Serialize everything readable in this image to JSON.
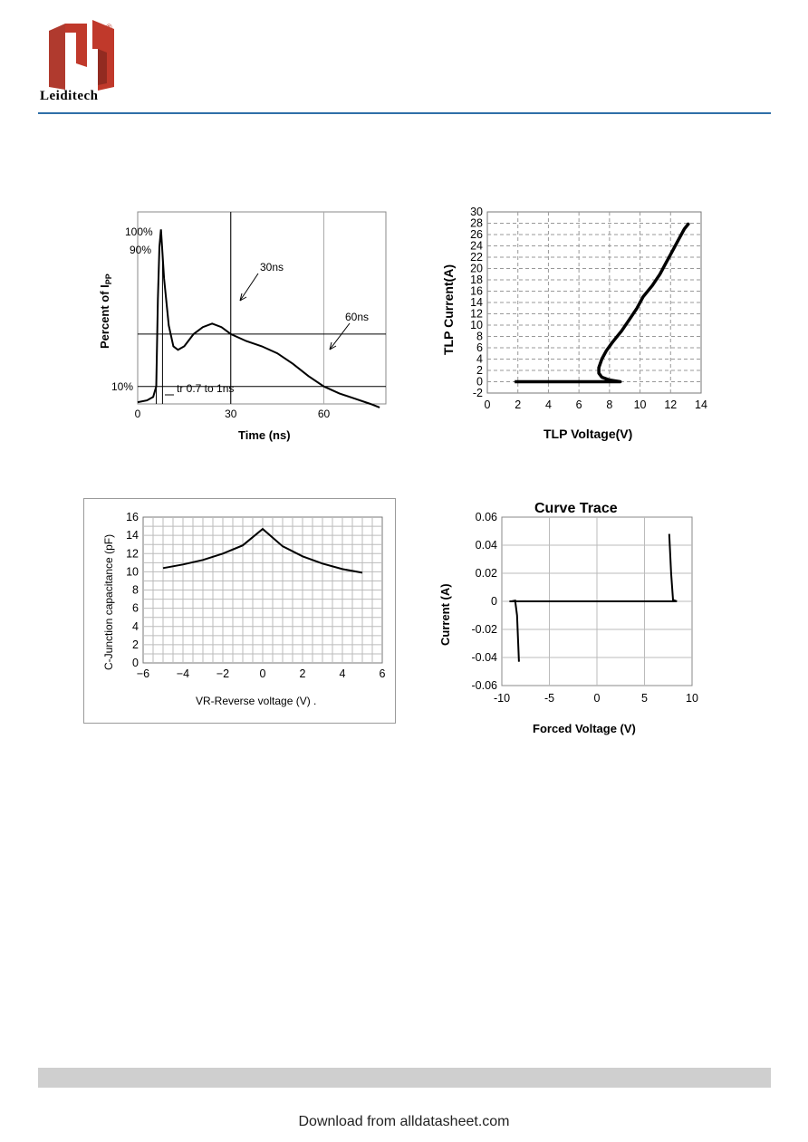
{
  "header": {
    "brand": "Leiditech",
    "registered": "®",
    "colors": {
      "logo_red": "#c0392b",
      "rule_blue": "#2f6fa8"
    }
  },
  "footer": {
    "download_text": "Download from alldatasheet.com",
    "bar_color": "#cfcfcf"
  },
  "chart_data": [
    {
      "type": "line",
      "id": "pulse-waveform",
      "xlabel": "Time (ns)",
      "ylabel": "Percent of I",
      "ylabel_sub": "PP",
      "xlim": [
        0,
        80
      ],
      "ylim": [
        0,
        110
      ],
      "x_ticks": [
        "0",
        "30",
        "60"
      ],
      "annotations": [
        "100%",
        "90%",
        "10%",
        "30ns",
        "60ns",
        "tr 0.7 to 1ns"
      ],
      "series": [
        {
          "points": [
            [
              0,
              1
            ],
            [
              3,
              2
            ],
            [
              5,
              4
            ],
            [
              6,
              10
            ],
            [
              6.5,
              60
            ],
            [
              7,
              90
            ],
            [
              7.5,
              100
            ],
            [
              8.5,
              72
            ],
            [
              10,
              45
            ],
            [
              11.5,
              33
            ],
            [
              13,
              31
            ],
            [
              15,
              33
            ],
            [
              18,
              40
            ],
            [
              21,
              44
            ],
            [
              24,
              46
            ],
            [
              27,
              44
            ],
            [
              30,
              40
            ],
            [
              35,
              36
            ],
            [
              40,
              33
            ],
            [
              45,
              29
            ],
            [
              50,
              23
            ],
            [
              55,
              16
            ],
            [
              60,
              10
            ],
            [
              65,
              6
            ],
            [
              70,
              3
            ],
            [
              75,
              0
            ],
            [
              78,
              -2
            ]
          ]
        }
      ],
      "grid": true
    },
    {
      "type": "scatter",
      "id": "tlp-iv",
      "xlabel": "TLP Voltage(V)",
      "ylabel": "TLP Current(A)",
      "xlim": [
        0,
        14
      ],
      "ylim": [
        -2,
        30
      ],
      "x_ticks": [
        "0",
        "2",
        "4",
        "6",
        "8",
        "10",
        "12",
        "14"
      ],
      "y_ticks": [
        "-2",
        "0",
        "2",
        "4",
        "6",
        "8",
        "10",
        "12",
        "14",
        "16",
        "18",
        "20",
        "22",
        "24",
        "26",
        "28",
        "30"
      ],
      "series": [
        {
          "points": [
            [
              1.8,
              0
            ],
            [
              8.7,
              0
            ],
            [
              8.0,
              0.3
            ],
            [
              7.5,
              0.8
            ],
            [
              7.3,
              1.5
            ],
            [
              7.3,
              2.5
            ],
            [
              7.5,
              4
            ],
            [
              7.8,
              5.5
            ],
            [
              8.2,
              7
            ],
            [
              8.8,
              9
            ],
            [
              9.3,
              11
            ],
            [
              9.8,
              13
            ],
            [
              10.2,
              15
            ],
            [
              10.8,
              17
            ],
            [
              11.3,
              19
            ],
            [
              11.7,
              21
            ],
            [
              12.1,
              23
            ],
            [
              12.5,
              25
            ],
            [
              12.9,
              27
            ],
            [
              13.2,
              28
            ]
          ]
        }
      ],
      "grid": true
    },
    {
      "type": "line",
      "id": "capacitance",
      "xlabel": "VR-Reverse voltage (V) .",
      "ylabel": "C-Junction capacitance (pF)",
      "xlim": [
        -6,
        6
      ],
      "ylim": [
        0,
        16
      ],
      "x_ticks": [
        "−6",
        "−4",
        "−2",
        "0",
        "2",
        "4",
        "6"
      ],
      "y_ticks": [
        "0",
        "2",
        "4",
        "6",
        "8",
        "10",
        "12",
        "14",
        "16"
      ],
      "series": [
        {
          "points": [
            [
              -5,
              10.4
            ],
            [
              -4,
              10.8
            ],
            [
              -3,
              11.3
            ],
            [
              -2,
              12.0
            ],
            [
              -1,
              12.9
            ],
            [
              0,
              14.7
            ],
            [
              1,
              12.8
            ],
            [
              2,
              11.7
            ],
            [
              3,
              10.9
            ],
            [
              4,
              10.3
            ],
            [
              5,
              9.9
            ]
          ]
        }
      ],
      "grid": true
    },
    {
      "type": "line",
      "id": "curve-trace",
      "title": "Curve Trace",
      "xlabel": "Forced Voltage (V)",
      "ylabel": "Current (A)",
      "xlim": [
        -10,
        10
      ],
      "ylim": [
        -0.06,
        0.06
      ],
      "x_ticks": [
        "-10",
        "-5",
        "0",
        "5",
        "10"
      ],
      "y_ticks": [
        "0.06",
        "0.04",
        "0.02",
        "0",
        "-0.02",
        "-0.04",
        "-0.06"
      ],
      "series": [
        {
          "points": [
            [
              -8.2,
              -0.043
            ],
            [
              -8.4,
              -0.01
            ],
            [
              -8.6,
              0.0005
            ],
            [
              -9.0,
              0
            ],
            [
              -9.2,
              0
            ],
            [
              0,
              0
            ],
            [
              7.7,
              0
            ],
            [
              8.4,
              0
            ],
            [
              8.0,
              0.001
            ],
            [
              7.8,
              0.02
            ],
            [
              7.6,
              0.048
            ]
          ]
        }
      ],
      "grid": true
    }
  ]
}
